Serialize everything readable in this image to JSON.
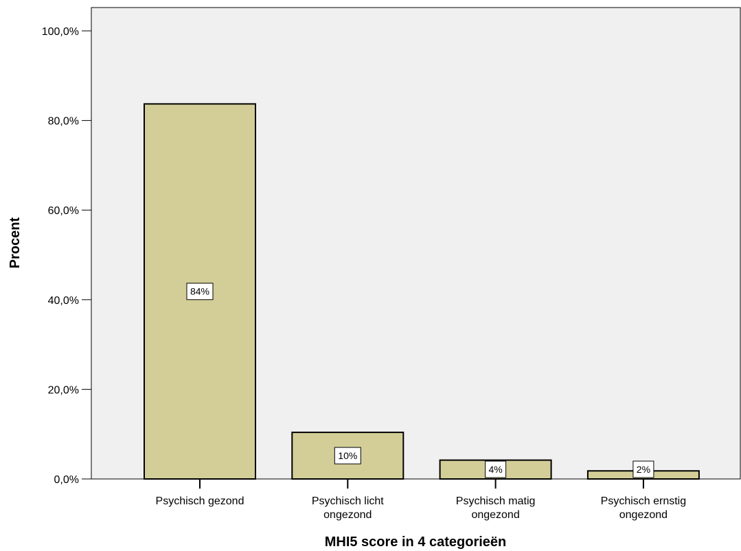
{
  "chart_data": {
    "type": "bar",
    "categories": [
      [
        "Psychisch gezond"
      ],
      [
        "Psychisch licht",
        "ongezond"
      ],
      [
        "Psychisch matig",
        "ongezond"
      ],
      [
        "Psychisch ernstig",
        "ongezond"
      ]
    ],
    "values": [
      83.7,
      10.4,
      4.2,
      1.8
    ],
    "data_labels": [
      "84%",
      "10%",
      "4%",
      "2%"
    ],
    "title": "",
    "xlabel": "MHI5 score in 4 categorieën",
    "ylabel": "Procent",
    "ylim": [
      0,
      100
    ],
    "yticks": [
      0,
      20,
      40,
      60,
      80,
      100
    ],
    "ytick_labels": [
      "0,0%",
      "20,0%",
      "40,0%",
      "60,0%",
      "80,0%",
      "100,0%"
    ],
    "grid": false,
    "legend": "none",
    "colors": {
      "plot_background": "#f0f0f0",
      "bar_fill": "#d3ce97",
      "bar_stroke": "#000000",
      "label_box": "#ffffff"
    }
  }
}
